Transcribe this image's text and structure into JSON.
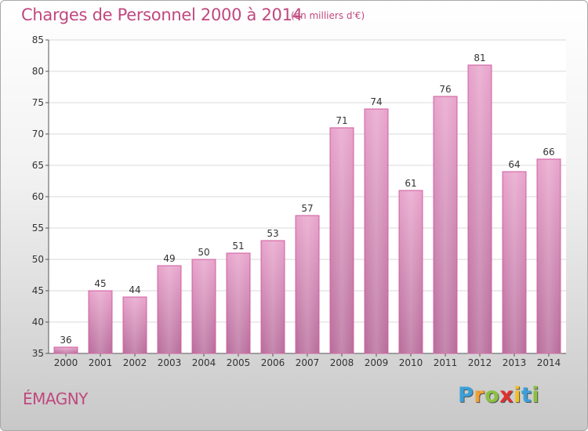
{
  "title": "Charges de Personnel 2000 à 2014",
  "subtitle": "(en milliers d'€)",
  "commune": "ÉMAGNY",
  "logo": {
    "text": "Proxiti",
    "letter_colors": [
      "#3aa0d8",
      "#f0a030",
      "#8bc040",
      "#e03030",
      "#f0c020",
      "#3aa0d8",
      "#8bc040"
    ]
  },
  "colors": {
    "title": "#c0487f",
    "bar_top": "#e8a4cc",
    "bar_bottom": "#b86e9c",
    "bar_stroke": "#d060a0"
  },
  "chart_data": {
    "type": "bar",
    "categories": [
      "2000",
      "2001",
      "2002",
      "2003",
      "2004",
      "2005",
      "2006",
      "2007",
      "2008",
      "2009",
      "2010",
      "2011",
      "2012",
      "2013",
      "2014"
    ],
    "values": [
      36,
      45,
      44,
      49,
      50,
      51,
      53,
      57,
      71,
      74,
      61,
      76,
      81,
      64,
      66
    ],
    "data_labels": [
      "36",
      "45",
      "44",
      "49",
      "50",
      "51",
      "53",
      "57",
      "71",
      "74",
      "61",
      "76",
      "81",
      "64",
      "66"
    ],
    "ylim": [
      35,
      85
    ],
    "yticks": [
      "35",
      "40",
      "45",
      "50",
      "55",
      "60",
      "65",
      "70",
      "75",
      "80",
      "85"
    ],
    "grid": true,
    "xlabel": "",
    "ylabel": ""
  }
}
